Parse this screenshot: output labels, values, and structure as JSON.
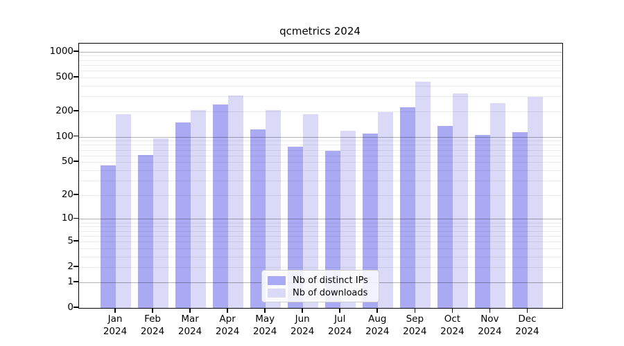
{
  "chart_data": {
    "type": "bar",
    "title": "qcmetrics 2024",
    "categories": [
      "Jan",
      "Feb",
      "Mar",
      "Apr",
      "May",
      "Jun",
      "Jul",
      "Aug",
      "Sep",
      "Oct",
      "Nov",
      "Dec"
    ],
    "x_year_label": "2024",
    "series": [
      {
        "name": "Nb of distinct IPs",
        "color": "#a9a9f4",
        "values": [
          46,
          61,
          148,
          240,
          122,
          77,
          68,
          110,
          225,
          135,
          105,
          114
        ]
      },
      {
        "name": "Nb of downloads",
        "color": "#dadaf8",
        "values": [
          185,
          96,
          205,
          305,
          205,
          186,
          118,
          194,
          443,
          325,
          248,
          295
        ]
      }
    ],
    "yscale": "log10(value+1)",
    "yticks": [
      1000,
      500,
      200,
      100,
      50,
      20,
      10,
      5,
      2,
      1,
      0
    ],
    "ylim": [
      0,
      1250
    ],
    "xlabel": "",
    "ylabel": "",
    "grid": "horizontal log minor+major, drawn over bars",
    "legend_position": "lower center"
  },
  "colors": {
    "axis": "#000000",
    "grid_minor": "rgba(0,0,0,0.075)",
    "grid_major": "rgba(0,0,0,0.30)",
    "legend_bg": "rgba(255,255,255,0.85)",
    "legend_border": "#cccccc"
  }
}
